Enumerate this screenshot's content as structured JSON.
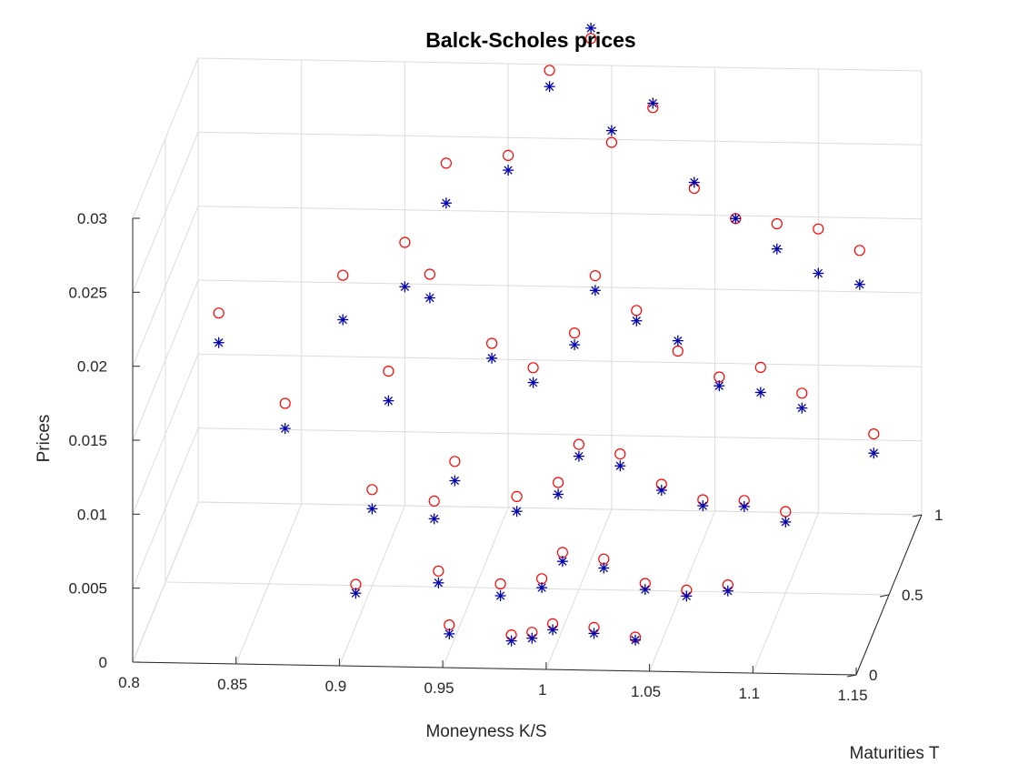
{
  "chart_data": {
    "type": "scatter",
    "title": "Balck-Scholes prices",
    "xlabel": "Moneyness K/S",
    "ylabel": "Maturities T",
    "zlabel": "Prices",
    "xlim": [
      0.8,
      1.15
    ],
    "ylim": [
      0,
      1
    ],
    "zlim": [
      0,
      0.03
    ],
    "xticks": [
      "0.8",
      "0.85",
      "0.9",
      "0.95",
      "1",
      "1.05",
      "1.1",
      "1.15"
    ],
    "yticks": [
      "0",
      "0.5",
      "1"
    ],
    "zticks": [
      "0",
      "0.005",
      "0.01",
      "0.015",
      "0.02",
      "0.025",
      "0.03"
    ],
    "grid": true,
    "series": [
      {
        "marker": "circle",
        "color": "#ff0000",
        "points": [
          [
            0.81,
            1.0,
            0.0128
          ],
          [
            0.85,
            0.75,
            0.0095
          ],
          [
            0.87,
            1.0,
            0.0155
          ],
          [
            0.9,
            1.0,
            0.0178
          ],
          [
            0.9,
            0.75,
            0.0118
          ],
          [
            0.92,
            1.0,
            0.0232
          ],
          [
            0.92,
            0.75,
            0.0184
          ],
          [
            0.9,
            0.5,
            0.0065
          ],
          [
            0.9,
            0.25,
            0.0028
          ],
          [
            0.93,
            0.5,
            0.0058
          ],
          [
            0.95,
            1.0,
            0.0238
          ],
          [
            0.95,
            0.75,
            0.0138
          ],
          [
            0.94,
            0.5,
            0.0085
          ],
          [
            0.94,
            0.25,
            0.0038
          ],
          [
            0.95,
            0.1,
            0.0018
          ],
          [
            0.97,
            1.0,
            0.0296
          ],
          [
            0.97,
            0.75,
            0.0122
          ],
          [
            0.97,
            0.5,
            0.0062
          ],
          [
            0.97,
            0.25,
            0.003
          ],
          [
            0.98,
            0.1,
            0.0012
          ],
          [
            0.99,
            1.0,
            0.0318
          ],
          [
            0.99,
            0.75,
            0.0146
          ],
          [
            0.99,
            0.5,
            0.0072
          ],
          [
            0.99,
            0.25,
            0.0034
          ],
          [
            0.99,
            0.1,
            0.0014
          ],
          [
            1.0,
            1.0,
            0.0248
          ],
          [
            1.0,
            0.75,
            0.0185
          ],
          [
            1.0,
            0.5,
            0.0098
          ],
          [
            1.0,
            0.25,
            0.0052
          ],
          [
            1.0,
            0.1,
            0.002
          ],
          [
            1.02,
            1.0,
            0.0272
          ],
          [
            1.02,
            0.75,
            0.0162
          ],
          [
            1.02,
            0.5,
            0.0092
          ],
          [
            1.02,
            0.25,
            0.0048
          ],
          [
            1.02,
            0.1,
            0.0018
          ],
          [
            1.04,
            1.0,
            0.0218
          ],
          [
            1.04,
            0.75,
            0.0135
          ],
          [
            1.04,
            0.5,
            0.0072
          ],
          [
            1.04,
            0.25,
            0.0032
          ],
          [
            1.04,
            0.1,
            0.0012
          ],
          [
            1.06,
            1.0,
            0.0198
          ],
          [
            1.06,
            0.75,
            0.0118
          ],
          [
            1.06,
            0.5,
            0.0062
          ],
          [
            1.06,
            0.25,
            0.0028
          ],
          [
            1.08,
            1.0,
            0.0195
          ],
          [
            1.08,
            0.75,
            0.0125
          ],
          [
            1.08,
            0.5,
            0.0062
          ],
          [
            1.08,
            0.25,
            0.0032
          ],
          [
            1.1,
            1.0,
            0.0192
          ],
          [
            1.1,
            0.75,
            0.0108
          ],
          [
            1.1,
            0.5,
            0.0055
          ],
          [
            1.12,
            1.0,
            0.0178
          ],
          [
            1.13,
            0.9,
            0.0065
          ]
        ]
      },
      {
        "marker": "asterisk",
        "color": "#0000aa",
        "points": [
          [
            0.81,
            1.0,
            0.0108
          ],
          [
            0.85,
            0.75,
            0.0078
          ],
          [
            0.87,
            1.0,
            0.0125
          ],
          [
            0.9,
            1.0,
            0.0148
          ],
          [
            0.9,
            0.75,
            0.0098
          ],
          [
            0.92,
            1.0,
            0.0205
          ],
          [
            0.92,
            0.75,
            0.0168
          ],
          [
            0.9,
            0.5,
            0.0052
          ],
          [
            0.9,
            0.25,
            0.0022
          ],
          [
            0.93,
            0.5,
            0.0046
          ],
          [
            0.95,
            1.0,
            0.0228
          ],
          [
            0.95,
            0.75,
            0.0128
          ],
          [
            0.94,
            0.5,
            0.0072
          ],
          [
            0.94,
            0.25,
            0.003
          ],
          [
            0.95,
            0.1,
            0.0012
          ],
          [
            0.97,
            1.0,
            0.0285
          ],
          [
            0.97,
            0.75,
            0.0112
          ],
          [
            0.97,
            0.5,
            0.0052
          ],
          [
            0.97,
            0.25,
            0.0022
          ],
          [
            0.98,
            0.1,
            0.0008
          ],
          [
            0.99,
            1.0,
            0.0325
          ],
          [
            0.99,
            0.75,
            0.0138
          ],
          [
            0.99,
            0.5,
            0.0064
          ],
          [
            0.99,
            0.25,
            0.0028
          ],
          [
            0.99,
            0.1,
            0.001
          ],
          [
            1.0,
            1.0,
            0.0256
          ],
          [
            1.0,
            0.75,
            0.0175
          ],
          [
            1.0,
            0.5,
            0.009
          ],
          [
            1.0,
            0.25,
            0.0046
          ],
          [
            1.0,
            0.1,
            0.0016
          ],
          [
            1.02,
            1.0,
            0.0275
          ],
          [
            1.02,
            0.75,
            0.0155
          ],
          [
            1.02,
            0.5,
            0.0084
          ],
          [
            1.02,
            0.25,
            0.0042
          ],
          [
            1.02,
            0.1,
            0.0014
          ],
          [
            1.04,
            1.0,
            0.0222
          ],
          [
            1.04,
            0.75,
            0.0142
          ],
          [
            1.04,
            0.5,
            0.0068
          ],
          [
            1.04,
            0.25,
            0.0028
          ],
          [
            1.04,
            0.1,
            0.001
          ],
          [
            1.06,
            1.0,
            0.0198
          ],
          [
            1.06,
            0.75,
            0.0112
          ],
          [
            1.06,
            0.5,
            0.0058
          ],
          [
            1.06,
            0.25,
            0.0024
          ],
          [
            1.08,
            1.0,
            0.0178
          ],
          [
            1.08,
            0.75,
            0.0108
          ],
          [
            1.08,
            0.5,
            0.0058
          ],
          [
            1.08,
            0.25,
            0.0028
          ],
          [
            1.1,
            1.0,
            0.0162
          ],
          [
            1.1,
            0.75,
            0.0098
          ],
          [
            1.1,
            0.5,
            0.0048
          ],
          [
            1.12,
            1.0,
            0.0155
          ],
          [
            1.13,
            0.9,
            0.0052
          ]
        ]
      }
    ]
  }
}
